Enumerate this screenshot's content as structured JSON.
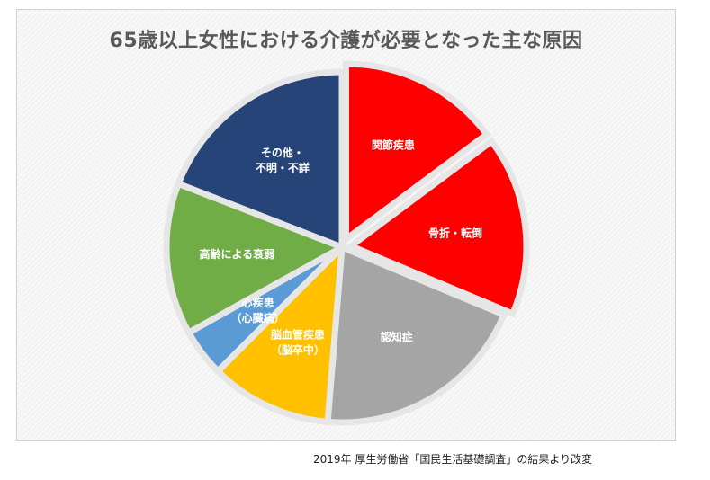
{
  "chart_data": {
    "type": "pie",
    "title": "65歳以上女性における介護が必要となった主な原因",
    "slices": [
      {
        "label": [
          "関節疾患"
        ],
        "value": 14.8,
        "color": "#ff0000",
        "explode": 1
      },
      {
        "label": [
          "骨折・転倒"
        ],
        "value": 16.5,
        "color": "#ff0000",
        "explode": 1
      },
      {
        "label": [
          "認知症"
        ],
        "value": 20.0,
        "color": "#a5a5a5",
        "explode": 0
      },
      {
        "label": [
          "脳血管疾患",
          "（脳卒中）"
        ],
        "value": 11.2,
        "color": "#ffc000",
        "explode": 0
      },
      {
        "label": [
          "心疾患",
          "（心臓病）"
        ],
        "value": 4.4,
        "color": "#5b9bd5",
        "explode": 0
      },
      {
        "label": [
          "高齢による衰弱"
        ],
        "value": 14.0,
        "color": "#70ad47",
        "explode": 0
      },
      {
        "label": [
          "その他・",
          "不明・不詳"
        ],
        "value": 19.1,
        "color": "#264478",
        "explode": 0
      }
    ],
    "legend": "none"
  },
  "source": "2019年 厚生労働省「国民生活基礎調査」の結果より改変"
}
